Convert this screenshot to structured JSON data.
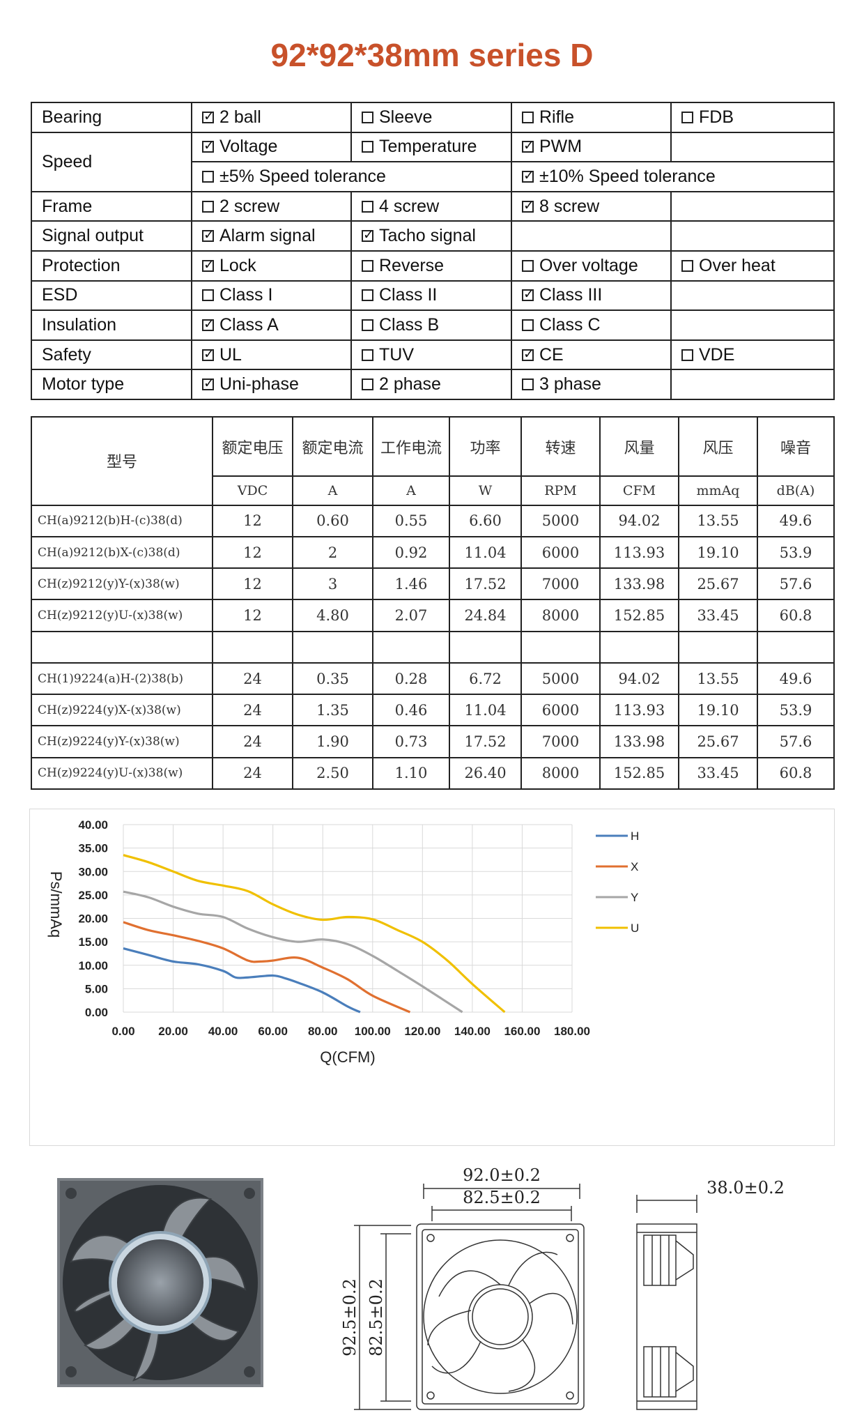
{
  "title": "92*92*38mm series D",
  "features": {
    "bearing": {
      "label": "Bearing",
      "options": [
        {
          "text": "2 ball",
          "checked": true
        },
        {
          "text": "Sleeve",
          "checked": false
        },
        {
          "text": "Rifle",
          "checked": false
        },
        {
          "text": "FDB",
          "checked": false
        }
      ]
    },
    "speed": {
      "label": "Speed",
      "options": [
        {
          "text": "Voltage",
          "checked": true
        },
        {
          "text": "Temperature",
          "checked": false
        },
        {
          "text": "PWM",
          "checked": true
        }
      ],
      "tolerance": [
        {
          "text": "±5% Speed tolerance",
          "checked": false
        },
        {
          "text": "±10% Speed tolerance",
          "checked": true
        }
      ]
    },
    "frame": {
      "label": "Frame",
      "options": [
        {
          "text": "2 screw",
          "checked": false
        },
        {
          "text": "4 screw",
          "checked": false
        },
        {
          "text": "8 screw",
          "checked": true
        }
      ]
    },
    "signal": {
      "label": "Signal output",
      "options": [
        {
          "text": "Alarm signal",
          "checked": true
        },
        {
          "text": "Tacho signal",
          "checked": true
        }
      ]
    },
    "protection": {
      "label": "Protection",
      "options": [
        {
          "text": "Lock",
          "checked": true
        },
        {
          "text": "Reverse",
          "checked": false
        },
        {
          "text": "Over voltage",
          "checked": false
        },
        {
          "text": "Over heat",
          "checked": false
        }
      ]
    },
    "esd": {
      "label": "ESD",
      "options": [
        {
          "text": "Class I",
          "checked": false
        },
        {
          "text": "Class II",
          "checked": false
        },
        {
          "text": "Class III",
          "checked": true
        }
      ]
    },
    "insulation": {
      "label": "Insulation",
      "options": [
        {
          "text": "Class A",
          "checked": true
        },
        {
          "text": "Class B",
          "checked": false
        },
        {
          "text": "Class C",
          "checked": false
        }
      ]
    },
    "safety": {
      "label": "Safety",
      "options": [
        {
          "text": "UL",
          "checked": true
        },
        {
          "text": "TUV",
          "checked": false
        },
        {
          "text": "CE",
          "checked": true
        },
        {
          "text": "VDE",
          "checked": false
        }
      ]
    },
    "motor": {
      "label": "Motor type",
      "options": [
        {
          "text": "Uni-phase",
          "checked": true
        },
        {
          "text": "2 phase",
          "checked": false
        },
        {
          "text": "3 phase",
          "checked": false
        }
      ]
    }
  },
  "spec": {
    "headers": [
      "型号",
      "额定电压",
      "额定电流",
      "工作电流",
      "功率",
      "转速",
      "风量",
      "风压",
      "噪音"
    ],
    "units": [
      "VDC",
      "A",
      "A",
      "W",
      "RPM",
      "CFM",
      "mmAq",
      "dB(A)"
    ],
    "rows12": [
      [
        "CH(a)9212(b)H-(c)38(d)",
        "12",
        "0.60",
        "0.55",
        "6.60",
        "5000",
        "94.02",
        "13.55",
        "49.6"
      ],
      [
        "CH(a)9212(b)X-(c)38(d)",
        "12",
        "2",
        "0.92",
        "11.04",
        "6000",
        "113.93",
        "19.10",
        "53.9"
      ],
      [
        "CH(z)9212(y)Y-(x)38(w)",
        "12",
        "3",
        "1.46",
        "17.52",
        "7000",
        "133.98",
        "25.67",
        "57.6"
      ],
      [
        "CH(z)9212(y)U-(x)38(w)",
        "12",
        "4.80",
        "2.07",
        "24.84",
        "8000",
        "152.85",
        "33.45",
        "60.8"
      ]
    ],
    "rows24": [
      [
        "CH(1)9224(a)H-(2)38(b)",
        "24",
        "0.35",
        "0.28",
        "6.72",
        "5000",
        "94.02",
        "13.55",
        "49.6"
      ],
      [
        "CH(z)9224(y)X-(x)38(w)",
        "24",
        "1.35",
        "0.46",
        "11.04",
        "6000",
        "113.93",
        "19.10",
        "53.9"
      ],
      [
        "CH(z)9224(y)Y-(x)38(w)",
        "24",
        "1.90",
        "0.73",
        "17.52",
        "7000",
        "133.98",
        "25.67",
        "57.6"
      ],
      [
        "CH(z)9224(y)U-(x)38(w)",
        "24",
        "2.50",
        "1.10",
        "26.40",
        "8000",
        "152.85",
        "33.45",
        "60.8"
      ]
    ]
  },
  "chart_data": {
    "type": "line",
    "xlabel": "Q(CFM)",
    "ylabel": "Ps/mmAq",
    "xlim": [
      0,
      180
    ],
    "ylim": [
      0,
      40
    ],
    "xticks": [
      "0.00",
      "20.00",
      "40.00",
      "60.00",
      "80.00",
      "100.00",
      "120.00",
      "140.00",
      "160.00",
      "180.00"
    ],
    "yticks": [
      "0.00",
      "5.00",
      "10.00",
      "15.00",
      "20.00",
      "25.00",
      "30.00",
      "35.00",
      "40.00"
    ],
    "grid": true,
    "legend": "right",
    "series": [
      {
        "name": "H",
        "color": "#4a7ebb",
        "x": [
          0,
          10,
          20,
          30,
          40,
          45,
          50,
          60,
          65,
          70,
          80,
          90,
          95
        ],
        "y": [
          13.6,
          12.2,
          10.8,
          10.2,
          8.8,
          7.4,
          7.4,
          7.8,
          7.2,
          6.3,
          4.2,
          1.2,
          0
        ]
      },
      {
        "name": "X",
        "color": "#e07030",
        "x": [
          0,
          10,
          20,
          30,
          40,
          50,
          55,
          60,
          70,
          80,
          90,
          100,
          115
        ],
        "y": [
          19.2,
          17.5,
          16.4,
          15.2,
          13.6,
          11.0,
          10.8,
          11.0,
          11.6,
          9.5,
          7.0,
          3.5,
          0
        ]
      },
      {
        "name": "Y",
        "color": "#a6a6a6",
        "x": [
          0,
          10,
          20,
          30,
          40,
          50,
          60,
          70,
          80,
          90,
          100,
          110,
          120,
          136
        ],
        "y": [
          25.7,
          24.5,
          22.5,
          21.0,
          20.3,
          17.8,
          16.0,
          15.0,
          15.5,
          14.5,
          12.0,
          8.8,
          5.5,
          0
        ]
      },
      {
        "name": "U",
        "color": "#f0c000",
        "x": [
          0,
          10,
          20,
          30,
          40,
          50,
          60,
          70,
          80,
          90,
          100,
          110,
          120,
          130,
          140,
          153
        ],
        "y": [
          33.5,
          32.0,
          30.0,
          28.0,
          27.0,
          25.8,
          23.0,
          20.8,
          19.7,
          20.3,
          19.8,
          17.5,
          15.0,
          11.0,
          6.0,
          0
        ]
      }
    ]
  },
  "drawings": {
    "width_outer": "92.0±0.2",
    "width_inner": "82.5±0.2",
    "height_outer": "92.5±0.2",
    "height_inner": "82.5±0.2",
    "depth": "38.0±0.2"
  }
}
